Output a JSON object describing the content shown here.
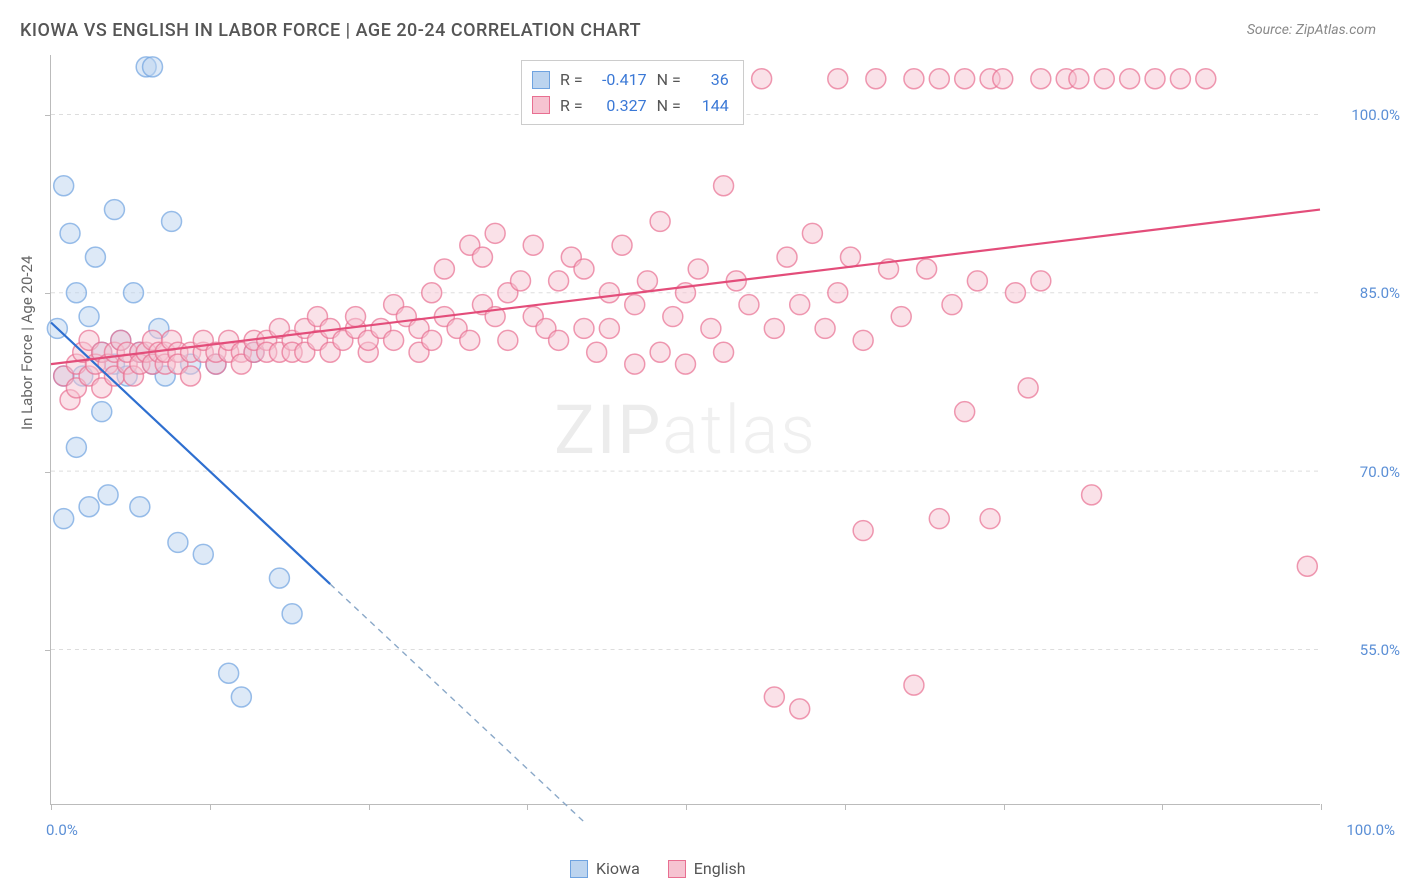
{
  "title": "KIOWA VS ENGLISH IN LABOR FORCE | AGE 20-24 CORRELATION CHART",
  "source_label": "Source: ZipAtlas.com",
  "watermark_text_bold": "ZIP",
  "watermark_text_thin": "atlas",
  "y_axis_label": "In Labor Force | Age 20-24",
  "x_min_label": "0.0%",
  "x_max_label": "100.0%",
  "chart": {
    "type": "scatter",
    "xlim": [
      0,
      100
    ],
    "ylim": [
      42,
      105
    ],
    "y_gridlines": [
      55.0,
      70.0,
      85.0,
      100.0
    ],
    "y_tick_labels": [
      "55.0%",
      "70.0%",
      "85.0%",
      "100.0%"
    ],
    "x_ticks": [
      0,
      12.5,
      25,
      37.5,
      50,
      62.5,
      75,
      87.5,
      100
    ],
    "background_color": "#ffffff",
    "grid_color": "#dddddd",
    "axis_color": "#bbbbbb",
    "label_color": "#5b8fd6",
    "marker_radius": 10,
    "marker_stroke_width": 1.5,
    "marker_fill_opacity": 0.25,
    "series": [
      {
        "name": "Kiowa",
        "color": "#6fa3e0",
        "fill": "#bcd4ef",
        "R": "-0.417",
        "N": "36",
        "trend": {
          "solid_from": [
            0,
            82.5
          ],
          "solid_to": [
            22,
            60.5
          ],
          "dashed_to": [
            42,
            40.5
          ],
          "stroke_width": 2.2
        },
        "points": [
          [
            0.5,
            82
          ],
          [
            1,
            94
          ],
          [
            1,
            78
          ],
          [
            1.5,
            90
          ],
          [
            2,
            85
          ],
          [
            2,
            72
          ],
          [
            2.5,
            78
          ],
          [
            3,
            83
          ],
          [
            3,
            67
          ],
          [
            3.5,
            88
          ],
          [
            4,
            80
          ],
          [
            4,
            75
          ],
          [
            4.5,
            68
          ],
          [
            5,
            79
          ],
          [
            5,
            92
          ],
          [
            5.5,
            81
          ],
          [
            6,
            78
          ],
          [
            6.5,
            85
          ],
          [
            7,
            80
          ],
          [
            7,
            67
          ],
          [
            7.5,
            104
          ],
          [
            8,
            104
          ],
          [
            8,
            79
          ],
          [
            8.5,
            82
          ],
          [
            9,
            78
          ],
          [
            9.5,
            91
          ],
          [
            10,
            64
          ],
          [
            11,
            79
          ],
          [
            12,
            63
          ],
          [
            13,
            79
          ],
          [
            14,
            53
          ],
          [
            15,
            51
          ],
          [
            16,
            80
          ],
          [
            18,
            61
          ],
          [
            19,
            58
          ],
          [
            1,
            66
          ]
        ]
      },
      {
        "name": "English",
        "color": "#e86f91",
        "fill": "#f6c3d1",
        "R": "0.327",
        "N": "144",
        "trend": {
          "solid_from": [
            0,
            79
          ],
          "solid_to": [
            100,
            92
          ],
          "stroke_width": 2.2
        },
        "points": [
          [
            1,
            78
          ],
          [
            1.5,
            76
          ],
          [
            2,
            79
          ],
          [
            2,
            77
          ],
          [
            2.5,
            80
          ],
          [
            3,
            78
          ],
          [
            3,
            81
          ],
          [
            3.5,
            79
          ],
          [
            4,
            80
          ],
          [
            4,
            77
          ],
          [
            4.5,
            79
          ],
          [
            5,
            80
          ],
          [
            5,
            78
          ],
          [
            5.5,
            81
          ],
          [
            6,
            79
          ],
          [
            6,
            80
          ],
          [
            6.5,
            78
          ],
          [
            7,
            80
          ],
          [
            7,
            79
          ],
          [
            7.5,
            80
          ],
          [
            8,
            79
          ],
          [
            8,
            81
          ],
          [
            8.5,
            80
          ],
          [
            9,
            79
          ],
          [
            9,
            80
          ],
          [
            9.5,
            81
          ],
          [
            10,
            80
          ],
          [
            10,
            79
          ],
          [
            11,
            80
          ],
          [
            11,
            78
          ],
          [
            12,
            80
          ],
          [
            12,
            81
          ],
          [
            13,
            79
          ],
          [
            13,
            80
          ],
          [
            14,
            80
          ],
          [
            14,
            81
          ],
          [
            15,
            80
          ],
          [
            15,
            79
          ],
          [
            16,
            80
          ],
          [
            16,
            81
          ],
          [
            17,
            81
          ],
          [
            17,
            80
          ],
          [
            18,
            80
          ],
          [
            18,
            82
          ],
          [
            19,
            81
          ],
          [
            19,
            80
          ],
          [
            20,
            80
          ],
          [
            20,
            82
          ],
          [
            21,
            81
          ],
          [
            21,
            83
          ],
          [
            22,
            80
          ],
          [
            22,
            82
          ],
          [
            23,
            81
          ],
          [
            24,
            82
          ],
          [
            24,
            83
          ],
          [
            25,
            80
          ],
          [
            25,
            81
          ],
          [
            26,
            82
          ],
          [
            27,
            84
          ],
          [
            27,
            81
          ],
          [
            28,
            83
          ],
          [
            29,
            80
          ],
          [
            29,
            82
          ],
          [
            30,
            85
          ],
          [
            30,
            81
          ],
          [
            31,
            83
          ],
          [
            31,
            87
          ],
          [
            32,
            82
          ],
          [
            33,
            89
          ],
          [
            33,
            81
          ],
          [
            34,
            84
          ],
          [
            34,
            88
          ],
          [
            35,
            83
          ],
          [
            35,
            90
          ],
          [
            36,
            81
          ],
          [
            36,
            85
          ],
          [
            37,
            86
          ],
          [
            38,
            83
          ],
          [
            38,
            89
          ],
          [
            39,
            82
          ],
          [
            40,
            86
          ],
          [
            40,
            81
          ],
          [
            41,
            88
          ],
          [
            42,
            82
          ],
          [
            42,
            87
          ],
          [
            43,
            80
          ],
          [
            44,
            85
          ],
          [
            44,
            82
          ],
          [
            45,
            89
          ],
          [
            46,
            79
          ],
          [
            46,
            84
          ],
          [
            47,
            86
          ],
          [
            48,
            80
          ],
          [
            48,
            91
          ],
          [
            49,
            83
          ],
          [
            50,
            85
          ],
          [
            50,
            79
          ],
          [
            51,
            87
          ],
          [
            52,
            82
          ],
          [
            53,
            94
          ],
          [
            53,
            80
          ],
          [
            54,
            86
          ],
          [
            55,
            84
          ],
          [
            56,
            103
          ],
          [
            57,
            51
          ],
          [
            57,
            82
          ],
          [
            58,
            88
          ],
          [
            59,
            84
          ],
          [
            59,
            50
          ],
          [
            60,
            90
          ],
          [
            61,
            82
          ],
          [
            62,
            103
          ],
          [
            62,
            85
          ],
          [
            63,
            88
          ],
          [
            64,
            65
          ],
          [
            64,
            81
          ],
          [
            65,
            103
          ],
          [
            66,
            87
          ],
          [
            67,
            83
          ],
          [
            68,
            103
          ],
          [
            68,
            52
          ],
          [
            69,
            87
          ],
          [
            70,
            66
          ],
          [
            70,
            103
          ],
          [
            71,
            84
          ],
          [
            72,
            103
          ],
          [
            72,
            75
          ],
          [
            73,
            86
          ],
          [
            74,
            66
          ],
          [
            74,
            103
          ],
          [
            75,
            103
          ],
          [
            76,
            85
          ],
          [
            77,
            77
          ],
          [
            78,
            103
          ],
          [
            78,
            86
          ],
          [
            80,
            103
          ],
          [
            81,
            103
          ],
          [
            82,
            68
          ],
          [
            83,
            103
          ],
          [
            85,
            103
          ],
          [
            87,
            103
          ],
          [
            89,
            103
          ],
          [
            91,
            103
          ],
          [
            99,
            62
          ]
        ]
      }
    ]
  },
  "stats_legend": {
    "r_label": "R =",
    "n_label": "N ="
  },
  "bottom_legend": {
    "items": [
      "Kiowa",
      "English"
    ]
  }
}
